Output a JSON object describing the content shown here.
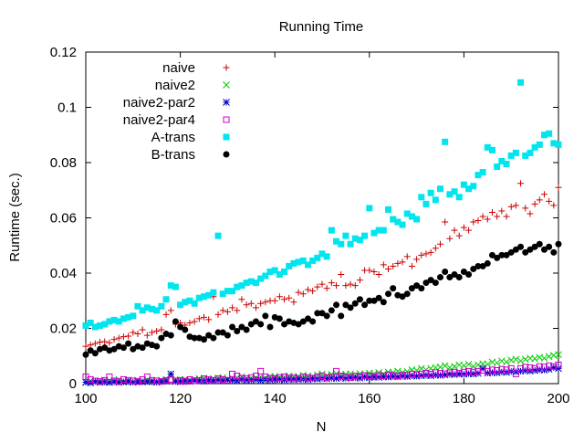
{
  "chart_data": {
    "type": "scatter",
    "title": "Running Time",
    "xlabel": "N",
    "ylabel": "Runtime (sec.)",
    "xlim": [
      100,
      200
    ],
    "ylim": [
      0,
      0.12
    ],
    "xticks": [
      100,
      120,
      140,
      160,
      180,
      200
    ],
    "yticks": [
      0,
      0.02,
      0.04,
      0.06,
      0.08,
      0.1,
      0.12
    ],
    "xtick_labels": [
      "100",
      "120",
      "140",
      "160",
      "180",
      "200"
    ],
    "ytick_labels": [
      "0",
      "0.02",
      "0.04",
      "0.06",
      "0.08",
      "0.1",
      "0.12"
    ],
    "grid": false,
    "legend_position": "top-left",
    "x": [
      100,
      101,
      102,
      103,
      104,
      105,
      106,
      107,
      108,
      109,
      110,
      111,
      112,
      113,
      114,
      115,
      116,
      117,
      118,
      119,
      120,
      121,
      122,
      123,
      124,
      125,
      126,
      127,
      128,
      129,
      130,
      131,
      132,
      133,
      134,
      135,
      136,
      137,
      138,
      139,
      140,
      141,
      142,
      143,
      144,
      145,
      146,
      147,
      148,
      149,
      150,
      151,
      152,
      153,
      154,
      155,
      156,
      157,
      158,
      159,
      160,
      161,
      162,
      163,
      164,
      165,
      166,
      167,
      168,
      169,
      170,
      171,
      172,
      173,
      174,
      175,
      176,
      177,
      178,
      179,
      180,
      181,
      182,
      183,
      184,
      185,
      186,
      187,
      188,
      189,
      190,
      191,
      192,
      193,
      194,
      195,
      196,
      197,
      198,
      199,
      200
    ],
    "series": [
      {
        "name": "naive",
        "marker": "plus",
        "color": "#cc0000",
        "values": [
          0.0135,
          0.014,
          0.0145,
          0.015,
          0.0152,
          0.0148,
          0.016,
          0.0165,
          0.017,
          0.0172,
          0.0185,
          0.018,
          0.0195,
          0.0175,
          0.0185,
          0.019,
          0.0195,
          0.025,
          0.0265,
          0.0215,
          0.022,
          0.0212,
          0.022,
          0.0225,
          0.0235,
          0.024,
          0.0232,
          0.0315,
          0.025,
          0.0265,
          0.026,
          0.0275,
          0.0265,
          0.0305,
          0.0285,
          0.029,
          0.0275,
          0.029,
          0.0295,
          0.03,
          0.03,
          0.0315,
          0.0305,
          0.031,
          0.0295,
          0.033,
          0.0325,
          0.034,
          0.0335,
          0.035,
          0.036,
          0.0345,
          0.0365,
          0.0355,
          0.0395,
          0.0355,
          0.036,
          0.0355,
          0.0375,
          0.041,
          0.041,
          0.0405,
          0.0395,
          0.043,
          0.0415,
          0.0425,
          0.0435,
          0.044,
          0.046,
          0.0425,
          0.045,
          0.0465,
          0.047,
          0.0475,
          0.049,
          0.0505,
          0.0585,
          0.0525,
          0.0555,
          0.0535,
          0.0565,
          0.0555,
          0.0585,
          0.059,
          0.0605,
          0.0595,
          0.062,
          0.0605,
          0.0625,
          0.0605,
          0.064,
          0.0645,
          0.0725,
          0.0635,
          0.0615,
          0.065,
          0.0665,
          0.0685,
          0.066,
          0.0645,
          0.071
        ]
      },
      {
        "name": "naive2",
        "marker": "cross",
        "color": "#00cc00",
        "values": [
          0.0005,
          0.001,
          0.0005,
          0.0008,
          0.0012,
          0.0006,
          0.001,
          0.0015,
          0.0008,
          0.0012,
          0.0006,
          0.0012,
          0.0009,
          0.0014,
          0.0011,
          0.0008,
          0.0012,
          0.0015,
          0.0025,
          0.0012,
          0.0014,
          0.0015,
          0.0012,
          0.0016,
          0.0018,
          0.002,
          0.0015,
          0.0018,
          0.002,
          0.0022,
          0.0016,
          0.002,
          0.0022,
          0.0025,
          0.0018,
          0.002,
          0.0022,
          0.0025,
          0.0022,
          0.0024,
          0.0026,
          0.0022,
          0.0025,
          0.0028,
          0.0024,
          0.0026,
          0.003,
          0.0028,
          0.0025,
          0.0032,
          0.0035,
          0.003,
          0.0033,
          0.0036,
          0.0032,
          0.0034,
          0.0035,
          0.003,
          0.0036,
          0.0032,
          0.0038,
          0.0036,
          0.004,
          0.0035,
          0.0042,
          0.004,
          0.0045,
          0.004,
          0.0044,
          0.005,
          0.0048,
          0.0055,
          0.005,
          0.0055,
          0.0058,
          0.006,
          0.0065,
          0.0058,
          0.0062,
          0.0068,
          0.0065,
          0.007,
          0.0062,
          0.0068,
          0.0072,
          0.007,
          0.0078,
          0.0075,
          0.0082,
          0.0078,
          0.0085,
          0.0088,
          0.0082,
          0.0088,
          0.0092,
          0.009,
          0.0095,
          0.0092,
          0.0098,
          0.0102,
          0.0105
        ]
      },
      {
        "name": "naive2-par2",
        "marker": "star",
        "color": "#0000cc",
        "values": [
          0.0005,
          0.0003,
          0.0008,
          0.0005,
          0.0006,
          0.0004,
          0.0007,
          0.0005,
          0.0006,
          0.0008,
          0.0005,
          0.0007,
          0.0006,
          0.0008,
          0.0007,
          0.0005,
          0.0008,
          0.0009,
          0.0035,
          0.0008,
          0.0007,
          0.001,
          0.0008,
          0.0011,
          0.001,
          0.0009,
          0.0012,
          0.001,
          0.0012,
          0.0011,
          0.0013,
          0.0012,
          0.001,
          0.0014,
          0.0012,
          0.0013,
          0.0015,
          0.0012,
          0.0014,
          0.0013,
          0.0016,
          0.0015,
          0.0014,
          0.0016,
          0.0015,
          0.0017,
          0.0016,
          0.0015,
          0.0018,
          0.0017,
          0.0019,
          0.0018,
          0.002,
          0.0019,
          0.0021,
          0.0019,
          0.0022,
          0.0021,
          0.002,
          0.0023,
          0.0022,
          0.0024,
          0.0023,
          0.0025,
          0.0024,
          0.0026,
          0.0025,
          0.0027,
          0.0026,
          0.0028,
          0.0027,
          0.0029,
          0.003,
          0.0029,
          0.0031,
          0.003,
          0.0032,
          0.0034,
          0.0033,
          0.0035,
          0.0034,
          0.0036,
          0.0035,
          0.0037,
          0.0055,
          0.0038,
          0.004,
          0.0039,
          0.0042,
          0.0041,
          0.0044,
          0.0043,
          0.0045,
          0.0047,
          0.0046,
          0.0048,
          0.005,
          0.0049,
          0.0052,
          0.0058,
          0.0055
        ]
      },
      {
        "name": "naive2-par4",
        "marker": "open-square",
        "color": "#cc00cc",
        "values": [
          0.0025,
          0.0015,
          0.001,
          0.0008,
          0.0012,
          0.0025,
          0.001,
          0.0008,
          0.0015,
          0.0012,
          0.001,
          0.0008,
          0.0015,
          0.0025,
          0.0012,
          0.001,
          0.0008,
          0.0012,
          0.0015,
          0.001,
          0.0012,
          0.0008,
          0.0015,
          0.001,
          0.0012,
          0.0018,
          0.0015,
          0.0012,
          0.0018,
          0.0015,
          0.0012,
          0.0035,
          0.0028,
          0.002,
          0.0018,
          0.0022,
          0.0028,
          0.0045,
          0.0025,
          0.002,
          0.0018,
          0.0022,
          0.0025,
          0.002,
          0.0022,
          0.0018,
          0.0025,
          0.0022,
          0.002,
          0.0025,
          0.0028,
          0.0022,
          0.0025,
          0.0045,
          0.0028,
          0.0025,
          0.0022,
          0.0028,
          0.0025,
          0.003,
          0.0028,
          0.0025,
          0.003,
          0.0028,
          0.0032,
          0.003,
          0.0028,
          0.0032,
          0.003,
          0.0035,
          0.0032,
          0.0035,
          0.0038,
          0.0035,
          0.004,
          0.0038,
          0.0036,
          0.004,
          0.0042,
          0.0038,
          0.0042,
          0.0045,
          0.0042,
          0.0045,
          0.0048,
          0.0045,
          0.005,
          0.0048,
          0.0052,
          0.005,
          0.0055,
          0.0035,
          0.0055,
          0.006,
          0.0058,
          0.0055,
          0.0062,
          0.006,
          0.0065,
          0.0062,
          0.0068
        ]
      },
      {
        "name": "A-trans",
        "marker": "filled-square",
        "color": "#00e5ee",
        "values": [
          0.021,
          0.022,
          0.0205,
          0.021,
          0.0215,
          0.0225,
          0.023,
          0.0225,
          0.0235,
          0.024,
          0.0245,
          0.028,
          0.0265,
          0.0275,
          0.027,
          0.0265,
          0.028,
          0.0305,
          0.0355,
          0.035,
          0.0285,
          0.0295,
          0.03,
          0.029,
          0.031,
          0.0315,
          0.032,
          0.033,
          0.0535,
          0.0325,
          0.0335,
          0.0335,
          0.035,
          0.0355,
          0.0365,
          0.037,
          0.0365,
          0.038,
          0.039,
          0.0405,
          0.041,
          0.0395,
          0.0405,
          0.0425,
          0.0435,
          0.044,
          0.0445,
          0.043,
          0.0445,
          0.0455,
          0.047,
          0.046,
          0.0555,
          0.0515,
          0.0505,
          0.0535,
          0.0505,
          0.0525,
          0.052,
          0.0535,
          0.0635,
          0.0545,
          0.0555,
          0.0555,
          0.063,
          0.0595,
          0.0585,
          0.0575,
          0.0615,
          0.0605,
          0.0595,
          0.0675,
          0.065,
          0.069,
          0.0665,
          0.0705,
          0.0875,
          0.0685,
          0.0695,
          0.0675,
          0.072,
          0.0705,
          0.0715,
          0.0755,
          0.0765,
          0.0855,
          0.0845,
          0.0785,
          0.0805,
          0.0795,
          0.0825,
          0.0835,
          0.109,
          0.0825,
          0.0835,
          0.0855,
          0.0865,
          0.09,
          0.0905,
          0.087,
          0.0865
        ]
      },
      {
        "name": "B-trans",
        "marker": "filled-circle",
        "color": "#000000",
        "values": [
          0.0105,
          0.012,
          0.011,
          0.0125,
          0.013,
          0.012,
          0.0125,
          0.0135,
          0.013,
          0.0145,
          0.0125,
          0.0135,
          0.013,
          0.0145,
          0.014,
          0.0135,
          0.0165,
          0.018,
          0.0175,
          0.0225,
          0.0205,
          0.0195,
          0.017,
          0.0165,
          0.0165,
          0.016,
          0.0175,
          0.0165,
          0.0185,
          0.0185,
          0.0175,
          0.0205,
          0.019,
          0.0205,
          0.0195,
          0.0215,
          0.0225,
          0.0215,
          0.0245,
          0.0205,
          0.024,
          0.0235,
          0.0215,
          0.0225,
          0.022,
          0.0215,
          0.0225,
          0.0235,
          0.0225,
          0.0255,
          0.0255,
          0.0245,
          0.0265,
          0.0285,
          0.0245,
          0.0285,
          0.0275,
          0.029,
          0.0305,
          0.0285,
          0.03,
          0.03,
          0.031,
          0.0295,
          0.0325,
          0.0345,
          0.032,
          0.0315,
          0.0325,
          0.0345,
          0.0355,
          0.0345,
          0.0365,
          0.0375,
          0.0365,
          0.0385,
          0.0405,
          0.0385,
          0.0395,
          0.0385,
          0.0405,
          0.0395,
          0.0415,
          0.0425,
          0.0425,
          0.0435,
          0.0465,
          0.0455,
          0.0465,
          0.0465,
          0.0475,
          0.0485,
          0.0495,
          0.0475,
          0.0485,
          0.0495,
          0.0505,
          0.0485,
          0.0495,
          0.0475,
          0.0505
        ]
      }
    ]
  }
}
